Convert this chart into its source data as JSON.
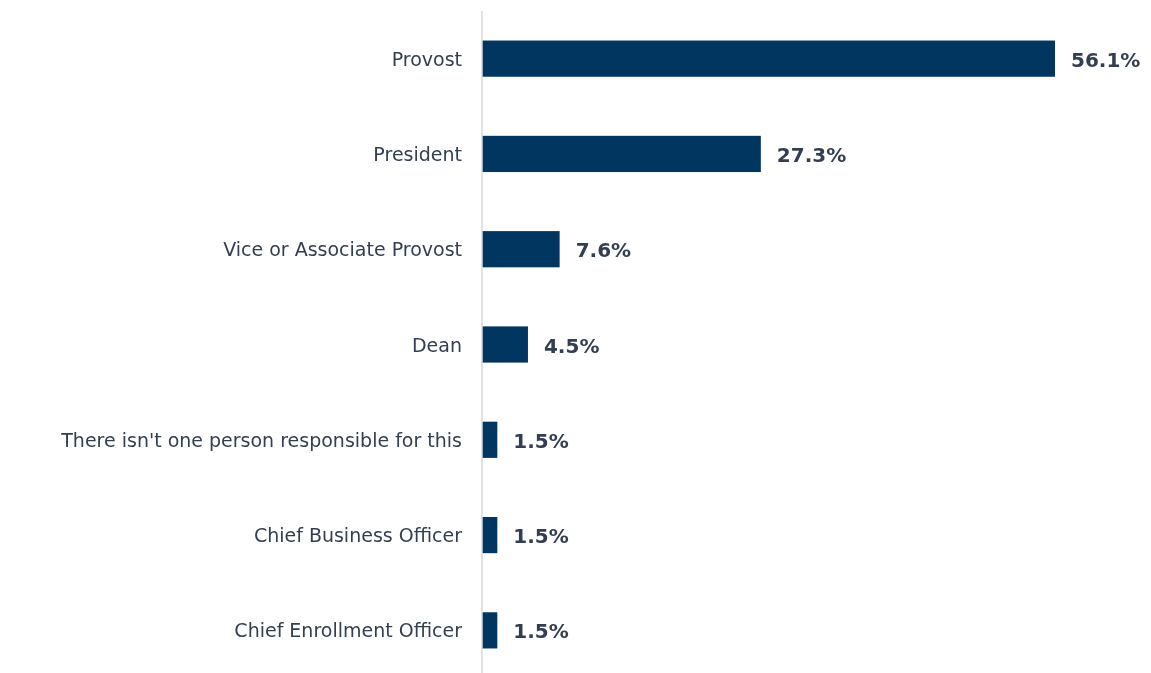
{
  "chart_data": {
    "type": "bar",
    "orientation": "horizontal",
    "categories": [
      "Provost",
      "President",
      "Vice or Associate Provost",
      "Dean",
      "There isn't one person responsible for this",
      "Chief Business Officer",
      "Chief Enrollment Officer"
    ],
    "values": [
      56.1,
      27.3,
      7.6,
      4.5,
      1.5,
      1.5,
      1.5
    ],
    "value_labels": [
      "56.1%",
      "27.3%",
      "7.6%",
      "4.5%",
      "1.5%",
      "1.5%",
      "1.5%"
    ],
    "color": "#003660"
  }
}
